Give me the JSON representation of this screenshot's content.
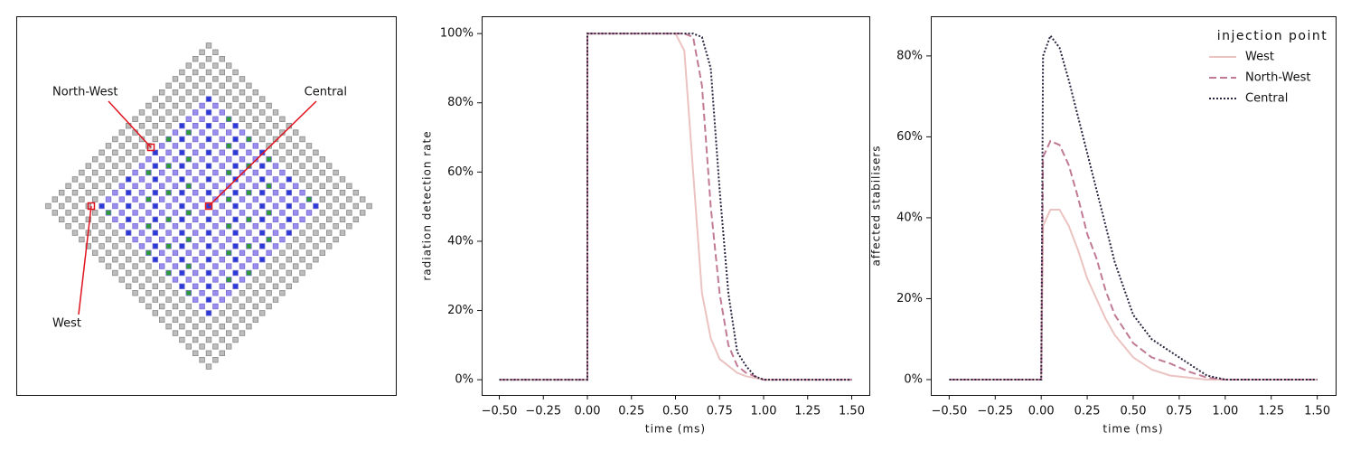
{
  "chart_data": [
    {
      "type": "diagram",
      "annotations": [
        "North-West",
        "Central",
        "West"
      ]
    },
    {
      "type": "line",
      "ylabel": "radiation detection rate",
      "xlabel": "time (ms)",
      "x": [
        -0.5,
        -0.25,
        0,
        0,
        0.25,
        0.5,
        0.55,
        0.6,
        0.65,
        0.7,
        0.75,
        0.8,
        0.85,
        0.9,
        0.95,
        1.0,
        1.25,
        1.5
      ],
      "series": [
        {
          "name": "West",
          "color": "#ebc3c0",
          "dash": "solid",
          "values": [
            0,
            0,
            0,
            100,
            100,
            100,
            95,
            60,
            25,
            12,
            6,
            4,
            2,
            1,
            0.5,
            0,
            0,
            0
          ]
        },
        {
          "name": "North-West",
          "color": "#c07a95",
          "dash": "dashed",
          "values": [
            0,
            0,
            0,
            100,
            100,
            100,
            100,
            99,
            85,
            50,
            25,
            10,
            4,
            2,
            1,
            0,
            0,
            0
          ]
        },
        {
          "name": "Central",
          "color": "#2b2440",
          "dash": "dotted",
          "values": [
            0,
            0,
            0,
            100,
            100,
            100,
            100,
            100,
            99,
            90,
            55,
            25,
            8,
            4,
            1,
            0,
            0,
            0
          ]
        }
      ],
      "xlim": [
        -0.6,
        1.6
      ],
      "xticks": [
        {
          "value": -0.5,
          "label": "−0.50"
        },
        {
          "value": -0.25,
          "label": "−0.25"
        },
        {
          "value": 0,
          "label": "0.00"
        },
        {
          "value": 0.25,
          "label": "0.25"
        },
        {
          "value": 0.5,
          "label": "0.50"
        },
        {
          "value": 0.75,
          "label": "0.75"
        },
        {
          "value": 1,
          "label": "1.00"
        },
        {
          "value": 1.25,
          "label": "1.25"
        },
        {
          "value": 1.5,
          "label": "1.50"
        }
      ],
      "ylim": [
        -4.4,
        105
      ],
      "yticks": [
        {
          "value": 0,
          "label": "0%"
        },
        {
          "value": 20,
          "label": "20%"
        },
        {
          "value": 40,
          "label": "40%"
        },
        {
          "value": 60,
          "label": "60%"
        },
        {
          "value": 80,
          "label": "80%"
        },
        {
          "value": 100,
          "label": "100%"
        }
      ]
    },
    {
      "type": "line",
      "ylabel": "affected stabilisers",
      "xlabel": "time (ms)",
      "legend_title": "injection point",
      "legend": "upper right",
      "x": [
        -0.5,
        -0.25,
        0,
        0.01,
        0.05,
        0.1,
        0.15,
        0.2,
        0.25,
        0.3,
        0.35,
        0.4,
        0.5,
        0.6,
        0.7,
        0.8,
        0.9,
        1.0,
        1.25,
        1.5
      ],
      "series": [
        {
          "name": "West",
          "color": "#ebc3c0",
          "dash": "solid",
          "values": [
            0,
            0,
            0,
            38,
            42,
            42,
            38,
            32,
            25,
            20,
            15,
            11,
            5.5,
            2.5,
            1,
            0.5,
            0,
            0,
            0,
            0
          ]
        },
        {
          "name": "North-West",
          "color": "#c07a95",
          "dash": "dashed",
          "values": [
            0,
            0,
            0,
            55,
            59,
            58,
            53,
            45,
            36,
            30,
            22,
            16,
            9,
            5.5,
            4,
            2,
            0.5,
            0,
            0,
            0
          ]
        },
        {
          "name": "Central",
          "color": "#2b2440",
          "dash": "dotted",
          "values": [
            0,
            0,
            0,
            80,
            85,
            82,
            74,
            65,
            56,
            47,
            38,
            29,
            16,
            10,
            7,
            4,
            1,
            0,
            0,
            0
          ]
        }
      ],
      "xlim": [
        -0.6,
        1.6
      ],
      "xticks": [
        {
          "value": -0.5,
          "label": "−0.50"
        },
        {
          "value": -0.25,
          "label": "−0.25"
        },
        {
          "value": 0,
          "label": "0.00"
        },
        {
          "value": 0.25,
          "label": "0.25"
        },
        {
          "value": 0.5,
          "label": "0.50"
        },
        {
          "value": 0.75,
          "label": "0.75"
        },
        {
          "value": 1,
          "label": "1.00"
        },
        {
          "value": 1.25,
          "label": "1.25"
        },
        {
          "value": 1.5,
          "label": "1.50"
        }
      ],
      "ylim": [
        -3.8,
        89.8
      ],
      "yticks": [
        {
          "value": 0,
          "label": "0%"
        },
        {
          "value": 20,
          "label": "20%"
        },
        {
          "value": 40,
          "label": "40%"
        },
        {
          "value": 60,
          "label": "60%"
        },
        {
          "value": 80,
          "label": "80%"
        }
      ]
    }
  ]
}
